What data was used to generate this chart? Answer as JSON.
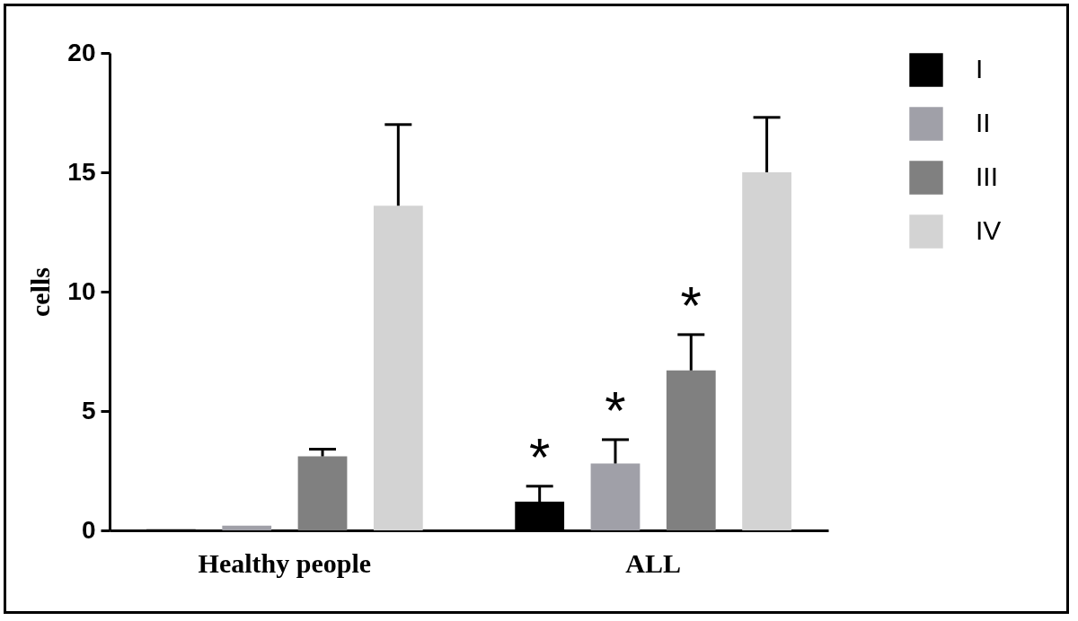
{
  "chart_data": {
    "type": "bar",
    "ylabel": "cells",
    "categories": [
      "Healthy people",
      "ALL"
    ],
    "series": [
      {
        "name": "I",
        "color": "#000000",
        "values": [
          0.05,
          1.2
        ],
        "errors": [
          null,
          [
            1.2,
            1.85
          ]
        ]
      },
      {
        "name": "II",
        "color": "#a0a0a8",
        "values": [
          0.2,
          2.8
        ],
        "errors": [
          null,
          [
            2.8,
            3.8
          ]
        ]
      },
      {
        "name": "III",
        "color": "#808080",
        "values": [
          3.1,
          6.7
        ],
        "errors": [
          [
            3.1,
            3.4
          ],
          [
            6.7,
            8.2
          ]
        ]
      },
      {
        "name": "IV",
        "color": "#d3d3d3",
        "values": [
          13.6,
          15.0
        ],
        "errors": [
          [
            13.6,
            17.0
          ],
          [
            15.0,
            17.3
          ]
        ]
      }
    ],
    "ylim": [
      0,
      20
    ],
    "yticks": [
      0,
      5,
      10,
      15,
      20
    ],
    "grid": false,
    "legend": "top right",
    "annotations": [
      "*",
      "*",
      "*"
    ]
  }
}
